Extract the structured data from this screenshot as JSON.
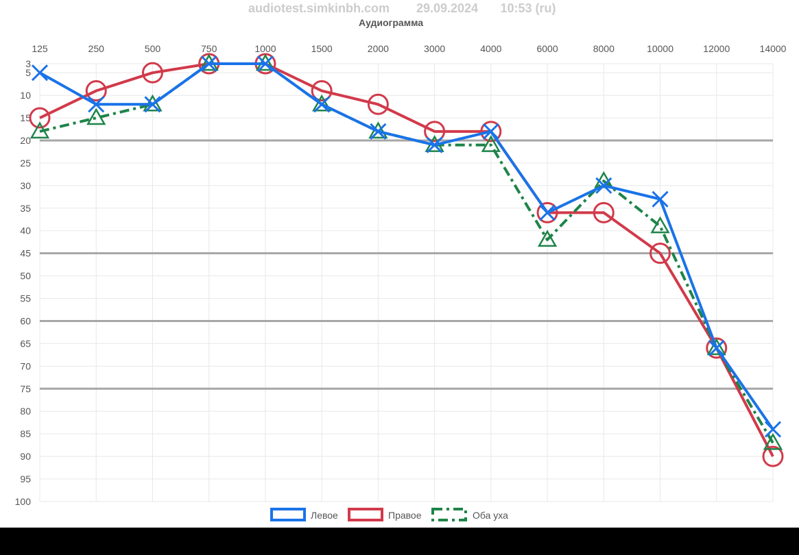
{
  "header": {
    "site": "audiotest.simkinbh.com",
    "date": "29.09.2024",
    "time": "10:53 (ru)"
  },
  "chart_data": {
    "type": "line",
    "title": "Аудиограмма",
    "categories": [
      "125",
      "250",
      "500",
      "750",
      "1000",
      "1500",
      "2000",
      "3000",
      "4000",
      "6000",
      "8000",
      "10000",
      "12000",
      "14000"
    ],
    "x_axis_position": "top",
    "y_axis": {
      "reversed": true,
      "ylim": [
        3,
        100
      ],
      "tick_labels": [
        "3",
        "5",
        "10",
        "15",
        "20",
        "25",
        "30",
        "35",
        "40",
        "45",
        "50",
        "55",
        "60",
        "65",
        "70",
        "75",
        "80",
        "85",
        "90",
        "95",
        "100"
      ],
      "ticks": [
        3,
        5,
        10,
        15,
        20,
        25,
        30,
        35,
        40,
        45,
        50,
        55,
        60,
        65,
        70,
        75,
        80,
        85,
        90,
        95,
        100
      ]
    },
    "reference_lines": [
      20,
      45,
      60,
      75
    ],
    "grid": true,
    "legend": "bottom",
    "series": [
      {
        "name": "Левое",
        "color": "#1a73e8",
        "marker": "cross",
        "line_style": "solid",
        "values": [
          5,
          12,
          12,
          3,
          3,
          12,
          18,
          21,
          18,
          36,
          30,
          33,
          66,
          84
        ]
      },
      {
        "name": "Правое",
        "color": "#d13a4a",
        "marker": "circle",
        "line_style": "solid",
        "values": [
          15,
          9,
          5,
          3,
          3,
          9,
          12,
          18,
          18,
          36,
          36,
          45,
          66,
          90
        ]
      },
      {
        "name": "Оба уха",
        "color": "#1e8449",
        "marker": "triangle",
        "line_style": "dash-dot",
        "values": [
          18,
          15,
          12,
          3,
          3,
          12,
          18,
          21,
          21,
          42,
          29,
          39,
          66,
          87
        ]
      }
    ]
  }
}
